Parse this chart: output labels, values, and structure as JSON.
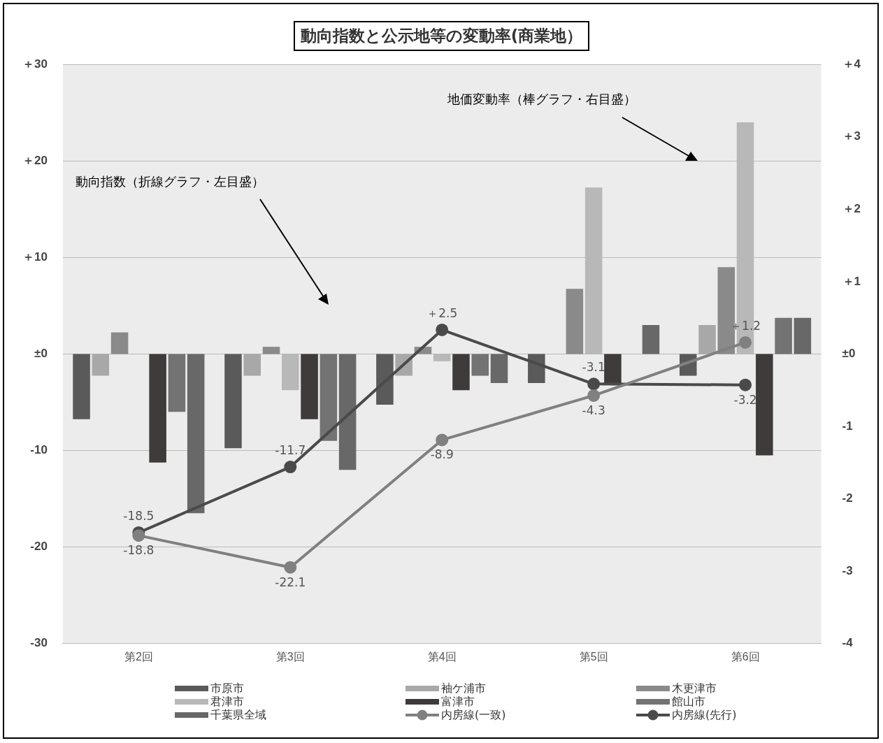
{
  "chart_data": {
    "type": "bar",
    "title": "動向指数と公示地等の変動率(商業地）",
    "categories": [
      "第2回",
      "第3回",
      "第4回",
      "第5回",
      "第6回"
    ],
    "series": [
      {
        "name": "市原市",
        "axis": "y2",
        "color": "#5a5a5a",
        "values": [
          -0.9,
          -1.3,
          -0.7,
          -0.4,
          -0.3
        ]
      },
      {
        "name": "袖ケ浦市",
        "type": "bar",
        "axis": "y2",
        "color": "#a8a8a8",
        "values": [
          -0.3,
          -0.3,
          -0.3,
          0,
          0.4
        ]
      },
      {
        "name": "木更津市",
        "type": "bar",
        "axis": "y2",
        "color": "#8a8a8a",
        "values": [
          0.3,
          0.1,
          0.1,
          0.9,
          1.2
        ]
      },
      {
        "name": "君津市",
        "type": "bar",
        "axis": "y2",
        "color": "#b8b8b8",
        "values": [
          0,
          -0.5,
          -0.1,
          2.3,
          3.2
        ]
      },
      {
        "name": "富津市",
        "type": "bar",
        "axis": "y2",
        "color": "#3f3b3b",
        "values": [
          -1.5,
          -0.9,
          -0.5,
          -0.4,
          -1.4
        ]
      },
      {
        "name": "館山市",
        "type": "bar",
        "axis": "y2",
        "color": "#737373",
        "values": [
          -0.8,
          -1.2,
          -0.3,
          0,
          0.5
        ]
      },
      {
        "name": "千葉県全域",
        "type": "bar",
        "axis": "y2",
        "color": "#686868",
        "values": [
          -2.2,
          -1.6,
          -0.4,
          0.4,
          0.5
        ]
      },
      {
        "name": "内房線(一致)",
        "type": "line",
        "color": "#808080",
        "values": [
          -18.8,
          -22.1,
          -8.9,
          -4.3,
          1.2
        ],
        "value_labels": [
          "-18.8",
          "-22.1",
          "-8.9",
          "-4.3",
          "＋1.2"
        ]
      },
      {
        "name": "内房線(先行)",
        "type": "line",
        "color": "#4a4a4a",
        "values": [
          -18.5,
          -11.7,
          2.5,
          -3.1,
          -3.2
        ],
        "value_labels": [
          "-18.5",
          "-11.7",
          "＋2.5",
          "-3.1",
          "-3.2"
        ]
      }
    ],
    "ylim": [
      -30,
      30
    ],
    "yticks": [
      {
        "value": -30,
        "label": "-30"
      },
      {
        "value": -20,
        "label": "-20"
      },
      {
        "value": -10,
        "label": "-10"
      },
      {
        "value": 0,
        "label": "±0"
      },
      {
        "value": 10,
        "label": "＋10"
      },
      {
        "value": 20,
        "label": "＋20"
      },
      {
        "value": 30,
        "label": "＋30"
      }
    ],
    "y2lim": [
      -4,
      4
    ],
    "y2ticks": [
      {
        "value": -4,
        "label": "-4"
      },
      {
        "value": -3,
        "label": "-3"
      },
      {
        "value": -2,
        "label": "-2"
      },
      {
        "value": -1,
        "label": "-1"
      },
      {
        "value": 0,
        "label": "±0"
      },
      {
        "value": 1,
        "label": "＋1"
      },
      {
        "value": 2,
        "label": "＋2"
      },
      {
        "value": 3,
        "label": "＋3"
      },
      {
        "value": 4,
        "label": "＋4"
      }
    ],
    "annotations": [
      "動向指数（折線グラフ・左目盛）",
      "地価変動率（棒グラフ・右目盛）"
    ],
    "grid": "y",
    "legend": "bottom",
    "marker": "circle",
    "line_style": "solid"
  }
}
